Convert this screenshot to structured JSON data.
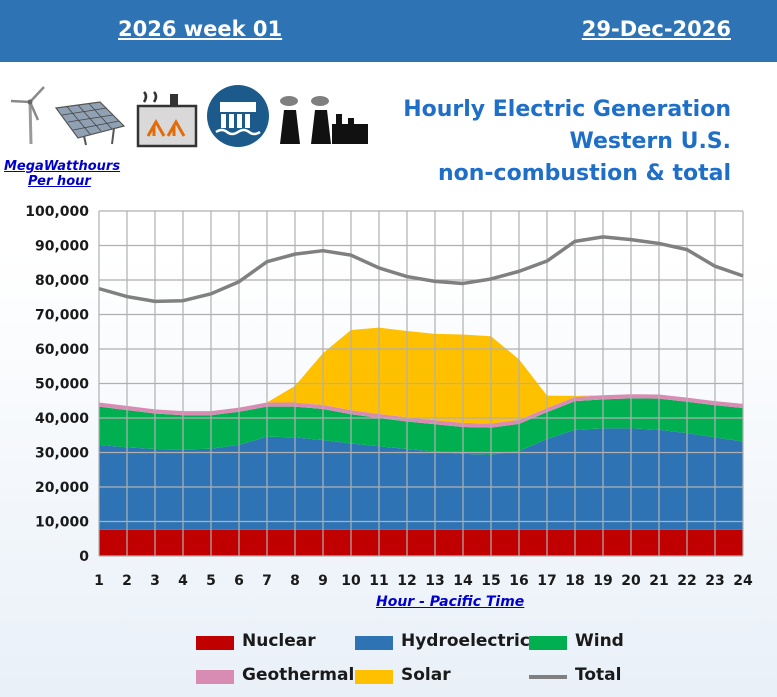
{
  "header": {
    "week": "2026 week 01",
    "date": "29-Dec-2026"
  },
  "title": {
    "line1": "Hourly Electric Generation",
    "line2": "Western U.S.",
    "line3": "non-combustion & total"
  },
  "unit": {
    "line1": "MegaWatthours",
    "line2": "Per hour"
  },
  "icons": [
    "wind-turbine-icon",
    "solar-panel-icon",
    "geothermal-plant-icon",
    "hydro-dam-icon",
    "power-plant-icon"
  ],
  "chart_data": {
    "type": "area",
    "xlabel": "Hour - Pacific Time",
    "ylabel": "",
    "x": [
      1,
      2,
      3,
      4,
      5,
      6,
      7,
      8,
      9,
      10,
      11,
      12,
      13,
      14,
      15,
      16,
      17,
      18,
      19,
      20,
      21,
      22,
      23,
      24
    ],
    "ylim": [
      0,
      100000
    ],
    "yticks": [
      0,
      10000,
      20000,
      30000,
      40000,
      50000,
      60000,
      70000,
      80000,
      90000,
      100000
    ],
    "ytick_labels": [
      "0",
      "10,000",
      "20,000",
      "30,000",
      "40,000",
      "50,000",
      "60,000",
      "70,000",
      "80,000",
      "90,000",
      "100,000"
    ],
    "grid": true,
    "legend_position": "bottom",
    "series": [
      {
        "name": "Nuclear",
        "kind": "area",
        "color": "#c00000",
        "values": [
          7600,
          7600,
          7600,
          7600,
          7600,
          7600,
          7600,
          7600,
          7600,
          7600,
          7600,
          7600,
          7600,
          7600,
          7600,
          7600,
          7600,
          7600,
          7600,
          7600,
          7600,
          7600,
          7600,
          7600
        ]
      },
      {
        "name": "Hydroelectric",
        "kind": "area",
        "color": "#2e74b5",
        "values": [
          24600,
          23900,
          23400,
          23300,
          23500,
          24600,
          27000,
          26800,
          26000,
          25000,
          24200,
          23400,
          22700,
          22000,
          21800,
          22800,
          26300,
          29000,
          29400,
          29400,
          29000,
          28000,
          26800,
          25600
        ]
      },
      {
        "name": "Wind",
        "kind": "area",
        "color": "#00b050",
        "values": [
          11100,
          10800,
          10300,
          9900,
          9700,
          9600,
          8700,
          8900,
          9000,
          8500,
          8200,
          8000,
          7900,
          7800,
          7800,
          7900,
          7800,
          8300,
          8400,
          8700,
          9000,
          9100,
          9300,
          9700
        ]
      },
      {
        "name": "Geothermal",
        "kind": "area",
        "color": "#d98cb3",
        "values": [
          1200,
          1200,
          1200,
          1200,
          1200,
          1200,
          1200,
          1200,
          1200,
          1200,
          1200,
          1200,
          1200,
          1200,
          1200,
          1200,
          1200,
          1200,
          1200,
          1200,
          1200,
          1200,
          1200,
          1200
        ]
      },
      {
        "name": "Solar",
        "kind": "area",
        "color": "#ffc000",
        "values": [
          0,
          0,
          0,
          0,
          0,
          0,
          0,
          4800,
          15000,
          23200,
          25000,
          25000,
          25000,
          25600,
          25300,
          17500,
          3600,
          300,
          0,
          0,
          0,
          0,
          0,
          0
        ]
      },
      {
        "name": "Total",
        "kind": "line",
        "color": "#808080",
        "values": [
          77500,
          75200,
          73800,
          74000,
          76000,
          79500,
          85300,
          87500,
          88500,
          87200,
          83500,
          81000,
          79600,
          79000,
          80300,
          82500,
          85500,
          91200,
          92500,
          91700,
          90600,
          88800,
          84000,
          81200
        ]
      }
    ]
  }
}
